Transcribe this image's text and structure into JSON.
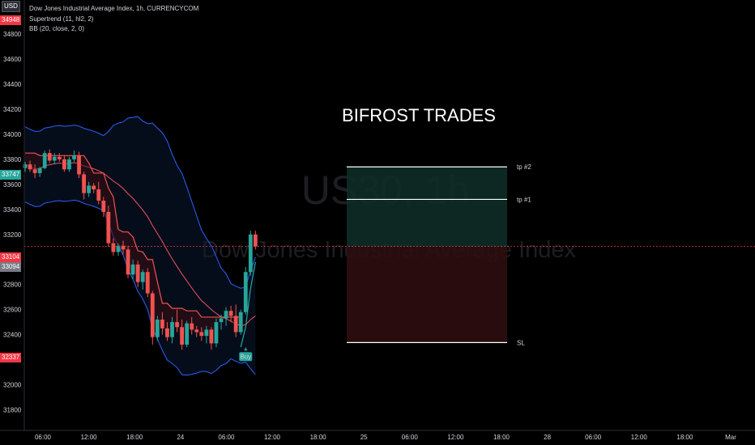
{
  "header": {
    "currency_badge": "USD",
    "title": "Dow Jones Industrial Average Index, 1h, CURRENCYCOM",
    "indicator1": "Supertrend (11, hl2, 2)",
    "indicator2": "BB (20, close, 2, 0)"
  },
  "watermark": {
    "symbol": "US30, 1h",
    "name": "Dow Jones Industrial Average Index"
  },
  "annotation": {
    "title": "BIFROST TRADES"
  },
  "price_badges": {
    "top": "34948",
    "bb_upper": "33747",
    "last": "33104",
    "bb_basis": "33094",
    "stop": "32337"
  },
  "trade": {
    "tp2_label": "tp #2",
    "tp1_label": "tp #1",
    "sl_label": "SL",
    "tp2": 33740,
    "tp1": 33480,
    "entry": 33100,
    "sl": 32337,
    "buy_label": "Buy"
  },
  "colors": {
    "up": "#26a69a",
    "down": "#ef5350",
    "bb": "#2962ff",
    "basis": "#f7525f",
    "target_zone": "#0e2c26",
    "stop_zone": "#2e0d10",
    "badge_red": "#f23645",
    "badge_green": "#26a69a",
    "badge_gray": "#787b86"
  },
  "chart_data": {
    "type": "candlestick",
    "ylim": [
      31800,
      35000
    ],
    "y_ticks": [
      31800,
      32000,
      32200,
      32400,
      32600,
      32800,
      33000,
      33200,
      33400,
      33600,
      33800,
      34000,
      34200,
      34400,
      34600,
      34800
    ],
    "x_ticks": [
      "06:00",
      "12:00",
      "18:00",
      "24",
      "06:00",
      "12:00",
      "18:00",
      "25",
      "06:00",
      "12:00",
      "18:00",
      "28",
      "06:00",
      "12:00",
      "18:00",
      "Mar"
    ],
    "candles": [
      [
        33730,
        33780,
        33700,
        33760
      ],
      [
        33760,
        33790,
        33700,
        33720
      ],
      [
        33720,
        33760,
        33650,
        33690
      ],
      [
        33690,
        33740,
        33660,
        33730
      ],
      [
        33730,
        33870,
        33720,
        33850
      ],
      [
        33850,
        33880,
        33770,
        33790
      ],
      [
        33790,
        33850,
        33760,
        33820
      ],
      [
        33820,
        33850,
        33780,
        33800
      ],
      [
        33800,
        33830,
        33700,
        33720
      ],
      [
        33720,
        33820,
        33700,
        33800
      ],
      [
        33800,
        33870,
        33780,
        33830
      ],
      [
        33830,
        33860,
        33650,
        33680
      ],
      [
        33680,
        33700,
        33480,
        33530
      ],
      [
        33530,
        33620,
        33500,
        33590
      ],
      [
        33590,
        33610,
        33530,
        33560
      ],
      [
        33560,
        33620,
        33440,
        33470
      ],
      [
        33470,
        33500,
        33340,
        33380
      ],
      [
        33380,
        33430,
        33100,
        33130
      ],
      [
        33130,
        33170,
        33030,
        33060
      ],
      [
        33060,
        33130,
        33030,
        33110
      ],
      [
        33110,
        33150,
        33040,
        33080
      ],
      [
        33080,
        33110,
        32850,
        32880
      ],
      [
        32880,
        33000,
        32840,
        32960
      ],
      [
        32960,
        32990,
        32780,
        32820
      ],
      [
        32820,
        32920,
        32760,
        32900
      ],
      [
        32900,
        32930,
        32700,
        32730
      ],
      [
        32730,
        32750,
        32320,
        32380
      ],
      [
        32380,
        32550,
        32350,
        32520
      ],
      [
        32520,
        32580,
        32400,
        32450
      ],
      [
        32450,
        32500,
        32350,
        32380
      ],
      [
        32380,
        32540,
        32330,
        32500
      ],
      [
        32500,
        32600,
        32420,
        32460
      ],
      [
        32460,
        32520,
        32280,
        32320
      ],
      [
        32320,
        32510,
        32300,
        32490
      ],
      [
        32490,
        32540,
        32400,
        32440
      ],
      [
        32440,
        32470,
        32380,
        32420
      ],
      [
        32420,
        32460,
        32350,
        32390
      ],
      [
        32390,
        32470,
        32330,
        32440
      ],
      [
        32440,
        32460,
        32280,
        32330
      ],
      [
        32330,
        32530,
        32300,
        32500
      ],
      [
        32500,
        32560,
        32440,
        32530
      ],
      [
        32530,
        32620,
        32470,
        32590
      ],
      [
        32590,
        32630,
        32500,
        32550
      ],
      [
        32550,
        32640,
        32380,
        32420
      ],
      [
        32420,
        32600,
        32400,
        32580
      ],
      [
        32580,
        32940,
        32560,
        32900
      ],
      [
        32900,
        33230,
        32870,
        33200
      ],
      [
        33200,
        33230,
        33080,
        33104
      ]
    ]
  }
}
